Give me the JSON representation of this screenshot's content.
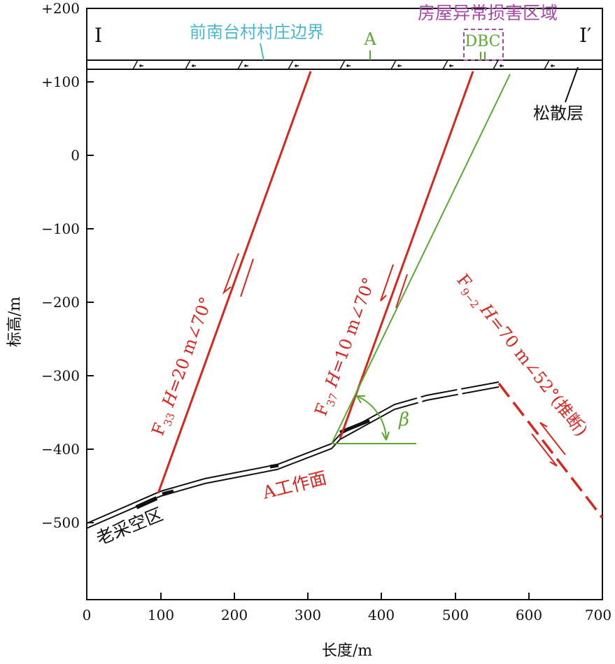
{
  "axes": {
    "xlabel": "长度/m",
    "ylabel": "标高/m",
    "xticks": [
      "0",
      "100",
      "200",
      "300",
      "400",
      "500",
      "600",
      "700"
    ],
    "yticks": [
      "+200",
      "+100",
      "0",
      "−100",
      "−200",
      "−300",
      "−400",
      "−500"
    ],
    "xlim": [
      0,
      700
    ],
    "ylim": [
      -605,
      200
    ]
  },
  "section": {
    "left": "I",
    "right": "I′"
  },
  "labels": {
    "village_boundary": "前南台村村庄边界",
    "damage_area": "房屋异常损害区域",
    "house_a": "A",
    "houses_dbc": "DBC",
    "loose_layer": "松散层",
    "goaf": "老采空区",
    "working_face": "A工作面",
    "beta": "β"
  },
  "faults": [
    {
      "name": "F33",
      "main": "F",
      "sub": "33",
      "spec_h": "H",
      "spec": "=20 m∠70°"
    },
    {
      "name": "F37",
      "main": "F",
      "sub": "37",
      "spec_h": "H",
      "spec": "=10 m∠70°"
    },
    {
      "name": "F9-2",
      "main": "F",
      "sub": "9−2",
      "spec_h": "H",
      "spec": "=70 m∠52°(推断)"
    }
  ],
  "colors": {
    "fault": "#d7261e",
    "green": "#5aa832",
    "purple": "#a44aa6",
    "cyan": "#4bb8c9"
  }
}
